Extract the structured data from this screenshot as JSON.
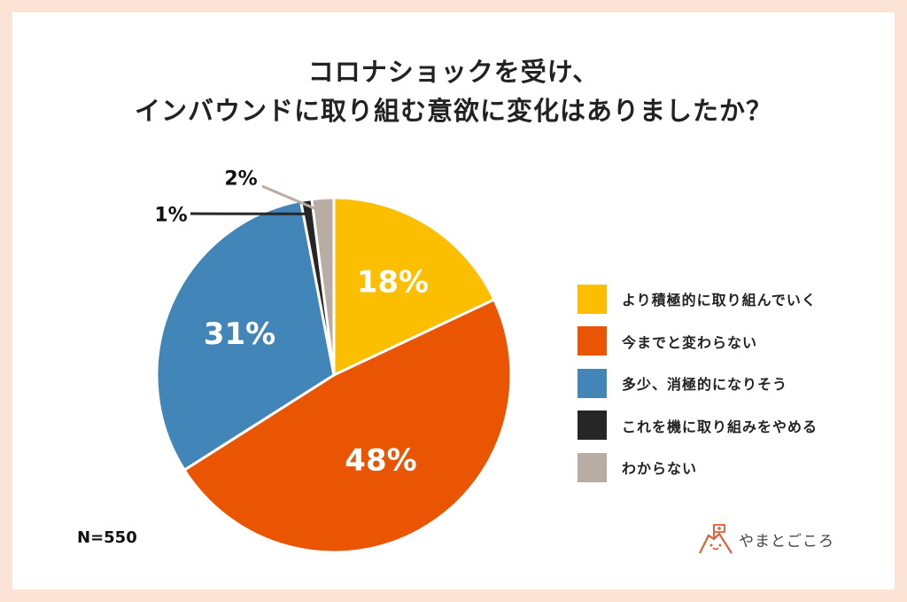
{
  "chart_data": {
    "type": "pie",
    "title_lines": [
      "コロナショックを受け、",
      "インバウンドに取り組む意欲に変化はありましたか？"
    ],
    "categories": [
      "より積極的に取り組んでいく",
      "今までと変わらない",
      "多少、消極的になりそう",
      "これを機に取り組みをやめる",
      "わからない"
    ],
    "values": [
      18,
      48,
      31,
      1,
      2
    ],
    "labels": [
      "18%",
      "48%",
      "31%",
      "1%",
      "2%"
    ],
    "colors": [
      "#fbbf00",
      "#ea5504",
      "#4285b8",
      "#262626",
      "#b8aca4"
    ],
    "start": "top",
    "direction": "clockwise",
    "legend_position": "right",
    "note": "N=550"
  },
  "logo": {
    "text": "やまとごころ"
  }
}
